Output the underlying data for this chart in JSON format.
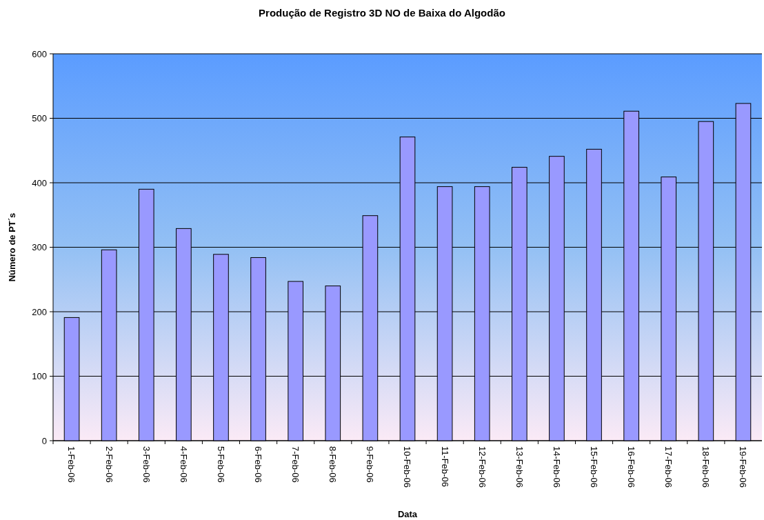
{
  "chart_data": {
    "type": "bar",
    "title": "Produção de Registro 3D NO de Baixa do Algodão",
    "xlabel": "Data",
    "ylabel": "Número de PT´s",
    "categories": [
      "1-Feb-06",
      "2-Feb-06",
      "3-Feb-06",
      "4-Feb-06",
      "5-Feb-06",
      "6-Feb-06",
      "7-Feb-06",
      "8-Feb-06",
      "9-Feb-06",
      "10-Feb-06",
      "11-Feb-06",
      "12-Feb-06",
      "13-Feb-06",
      "14-Feb-06",
      "15-Feb-06",
      "16-Feb-06",
      "17-Feb-06",
      "18-Feb-06",
      "19-Feb-06"
    ],
    "values": [
      191,
      296,
      390,
      329,
      289,
      284,
      247,
      240,
      349,
      471,
      394,
      394,
      424,
      441,
      452,
      511,
      409,
      495,
      523
    ],
    "color": "#9999ff",
    "ylim": [
      0,
      600
    ],
    "yticks": [
      0,
      100,
      200,
      300,
      400,
      500,
      600
    ],
    "grid": "y"
  }
}
